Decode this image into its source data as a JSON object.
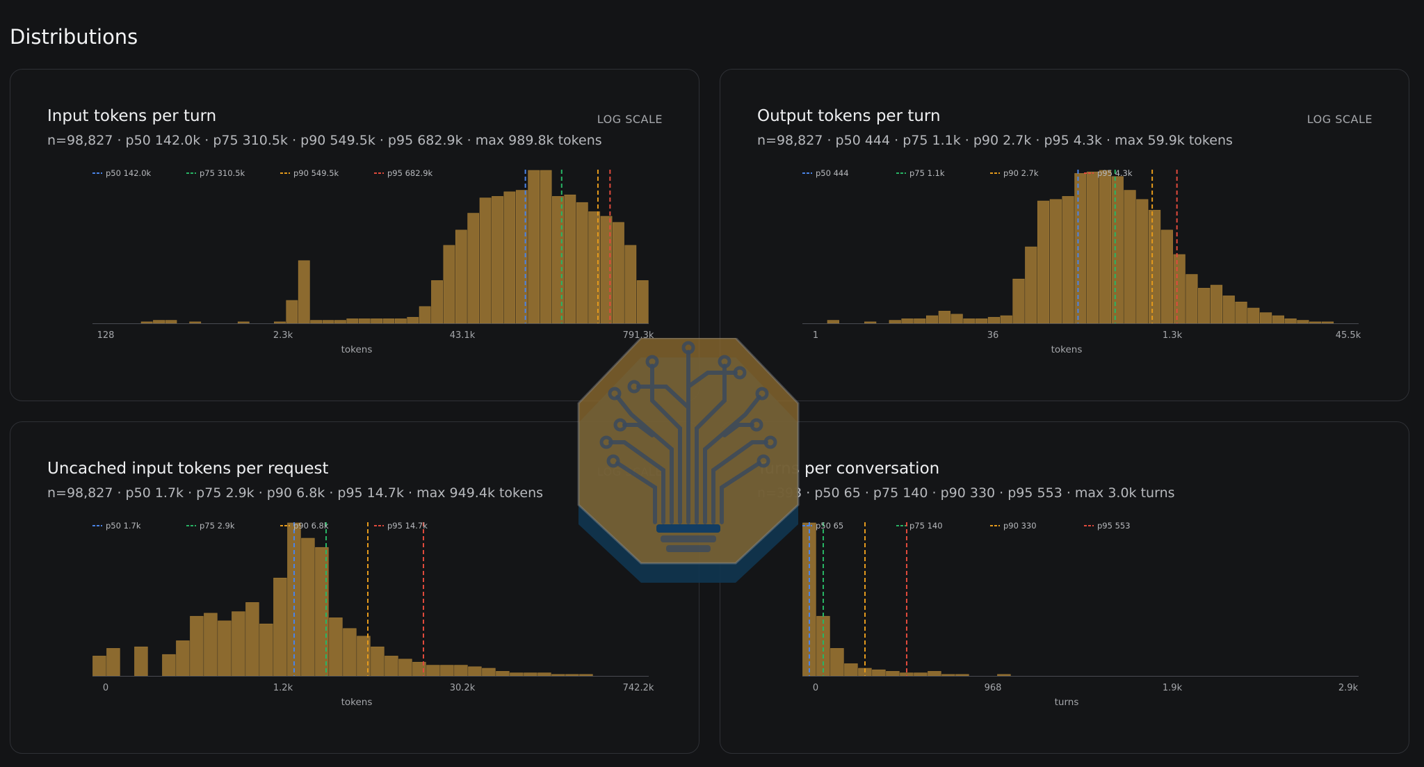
{
  "page": {
    "title": "Distributions"
  },
  "scale_label": "LOG SCALE",
  "colors": {
    "bar": "#8c6a2f",
    "bar_stroke": "#a47c36",
    "p50": "#4a83e6",
    "p75": "#28b464",
    "p90": "#e59a1c",
    "p95": "#e04a3c"
  },
  "cards": [
    {
      "title": "Input tokens per turn",
      "subtitle": "n=98,827 · p50 142.0k · p75 310.5k · p90 549.5k · p95 682.9k · max 989.8k tokens",
      "legend": [
        "p50 142.0k",
        "p75 310.5k",
        "p90 549.5k",
        "p95 682.9k"
      ],
      "x_ticks": [
        "128",
        "2.3k",
        "43.1k",
        "791.3k"
      ],
      "xlabel": "tokens"
    },
    {
      "title": "Output tokens per turn",
      "subtitle": "n=98,827 · p50 444 · p75 1.1k · p90 2.7k · p95 4.3k · max 59.9k tokens",
      "legend": [
        "p50 444",
        "p75 1.1k",
        "p90 2.7k",
        "p95 4.3k"
      ],
      "x_ticks": [
        "1",
        "36",
        "1.3k",
        "45.5k"
      ],
      "xlabel": "tokens"
    },
    {
      "title": "Uncached input tokens per request",
      "subtitle": "n=98,827 · p50 1.7k · p75 2.9k · p90 6.8k · p95 14.7k · max 949.4k tokens",
      "legend": [
        "p50 1.7k",
        "p75 2.9k",
        "p90 6.8k",
        "p95 14.7k"
      ],
      "x_ticks": [
        "0",
        "1.2k",
        "30.2k",
        "742.2k"
      ],
      "xlabel": "tokens"
    },
    {
      "title": "Turns per conversation",
      "subtitle": "n=393 · p50 65 · p75 140 · p90 330 · p95 553 · max 3.0k turns",
      "legend": [
        "p50 65",
        "p75 140",
        "p90 330",
        "p95 553"
      ],
      "x_ticks": [
        "0",
        "968",
        "1.9k",
        "2.9k"
      ],
      "xlabel": "turns"
    }
  ],
  "chart_data": [
    {
      "type": "bar",
      "title": "Input tokens per turn",
      "xlabel": "tokens",
      "x_scale": "log",
      "x_ticks": [
        "128",
        "2.3k",
        "43.1k",
        "791.3k"
      ],
      "series": [
        {
          "name": "count",
          "values": [
            0,
            0,
            0,
            0,
            1,
            2,
            2,
            0,
            1,
            0,
            0,
            0,
            1,
            0,
            0,
            1,
            15,
            41,
            2,
            2,
            2,
            3,
            3,
            3,
            3,
            3,
            4,
            11,
            28,
            51,
            61,
            72,
            82,
            83,
            86,
            87,
            100,
            100,
            83,
            84,
            79,
            73,
            70,
            66,
            51,
            28
          ]
        }
      ],
      "percentile_lines": [
        {
          "name": "p50 142.0k",
          "bin": 35.8
        },
        {
          "name": "p75 310.5k",
          "bin": 38.8
        },
        {
          "name": "p90 549.5k",
          "bin": 41.8
        },
        {
          "name": "p95 682.9k",
          "bin": 42.8
        }
      ]
    },
    {
      "type": "bar",
      "title": "Output tokens per turn",
      "xlabel": "tokens",
      "x_scale": "log",
      "x_ticks": [
        "1",
        "36",
        "1.3k",
        "45.5k"
      ],
      "series": [
        {
          "name": "count",
          "values": [
            0,
            0,
            2,
            0,
            0,
            1,
            0,
            2,
            3,
            3,
            5,
            8,
            6,
            3,
            3,
            4,
            5,
            29,
            50,
            80,
            81,
            83,
            98,
            99,
            100,
            96,
            87,
            81,
            74,
            61,
            45,
            32,
            23,
            25,
            18,
            14,
            10,
            7,
            5,
            3,
            2,
            1,
            1,
            0,
            0
          ]
        }
      ],
      "percentile_lines": [
        {
          "name": "p50 444",
          "bin": 22.3
        },
        {
          "name": "p75 1.1k",
          "bin": 25.3
        },
        {
          "name": "p90 2.7k",
          "bin": 28.3
        },
        {
          "name": "p95 4.3k",
          "bin": 30.3
        }
      ]
    },
    {
      "type": "bar",
      "title": "Uncached input tokens per request",
      "xlabel": "tokens",
      "x_scale": "log",
      "x_ticks": [
        "0",
        "1.2k",
        "30.2k",
        "742.2k"
      ],
      "series": [
        {
          "name": "count",
          "values": [
            13,
            18,
            0,
            19,
            0,
            14,
            23,
            39,
            41,
            36,
            42,
            48,
            34,
            64,
            100,
            90,
            84,
            38,
            31,
            26,
            19,
            13,
            11,
            9,
            7,
            7,
            7,
            6,
            5,
            3,
            2,
            2,
            2,
            1,
            1,
            1,
            0,
            0,
            0,
            0
          ]
        }
      ],
      "percentile_lines": [
        {
          "name": "p50 1.7k",
          "bin": 14.5
        },
        {
          "name": "p75 2.9k",
          "bin": 16.8
        },
        {
          "name": "p90 6.8k",
          "bin": 19.8
        },
        {
          "name": "p95 14.7k",
          "bin": 23.8
        }
      ]
    },
    {
      "type": "bar",
      "title": "Turns per conversation",
      "xlabel": "turns",
      "x_ticks": [
        "0",
        "968",
        "1.9k",
        "2.9k"
      ],
      "series": [
        {
          "name": "count",
          "values": [
            100,
            39,
            18,
            8,
            5,
            4,
            3,
            2,
            2,
            3,
            1,
            1,
            0,
            0,
            1,
            0,
            0,
            0,
            0,
            0,
            0,
            0,
            0,
            0,
            0,
            0,
            0,
            0,
            0,
            0,
            0,
            0,
            0,
            0,
            0,
            0,
            0,
            0,
            0,
            0
          ]
        }
      ],
      "percentile_lines": [
        {
          "name": "p50 65",
          "bin": 0.5
        },
        {
          "name": "p75 140",
          "bin": 1.5
        },
        {
          "name": "p90 330",
          "bin": 4.5
        },
        {
          "name": "p95 553",
          "bin": 7.5
        }
      ]
    }
  ]
}
